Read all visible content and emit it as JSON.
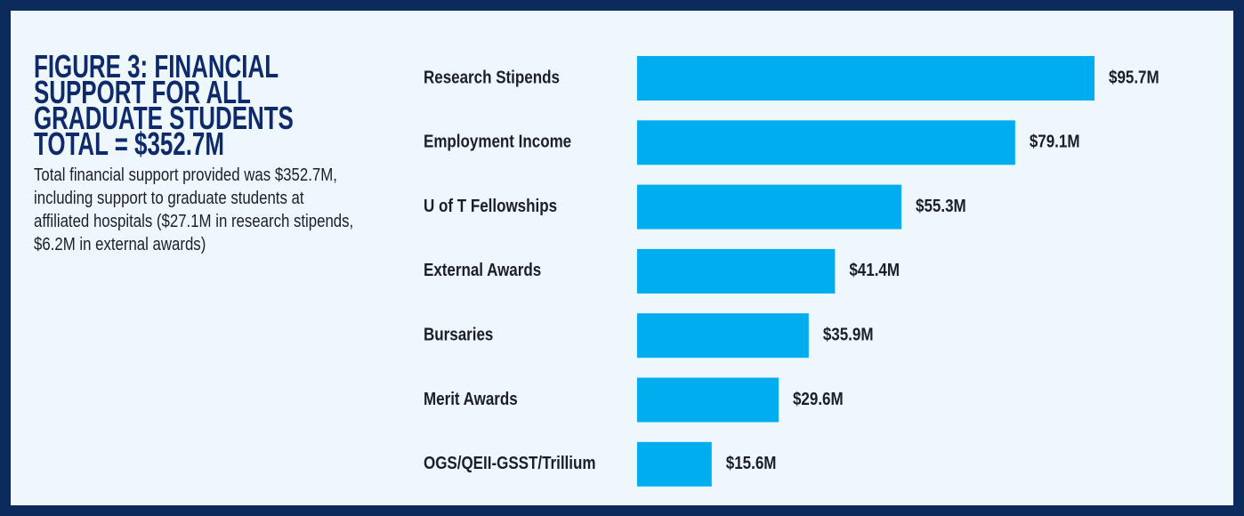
{
  "chart_data": {
    "type": "bar",
    "orientation": "horizontal",
    "title": "FIGURE 3: FINANCIAL SUPPORT FOR ALL GRADUATE STUDENTS",
    "subtitle": "TOTAL = $352.7M",
    "annotation": "Total financial support provided was $352.7M, including support to graduate students at affiliated hospitals ($27.1M in research stipends, $6.2M in external awards)",
    "categories": [
      "Research Stipends",
      "Employment Income",
      "U of T Fellowships",
      "External Awards",
      "Bursaries",
      "Merit Awards",
      "OGS/QEII-GSST/Trillium"
    ],
    "values": [
      95.7,
      79.1,
      55.3,
      41.4,
      35.9,
      29.6,
      15.6
    ],
    "value_labels": [
      "$95.7M",
      "$79.1M",
      "$55.3M",
      "$41.4M",
      "$35.9M",
      "$29.6M",
      "$15.6M"
    ],
    "color": "#00aeef"
  }
}
